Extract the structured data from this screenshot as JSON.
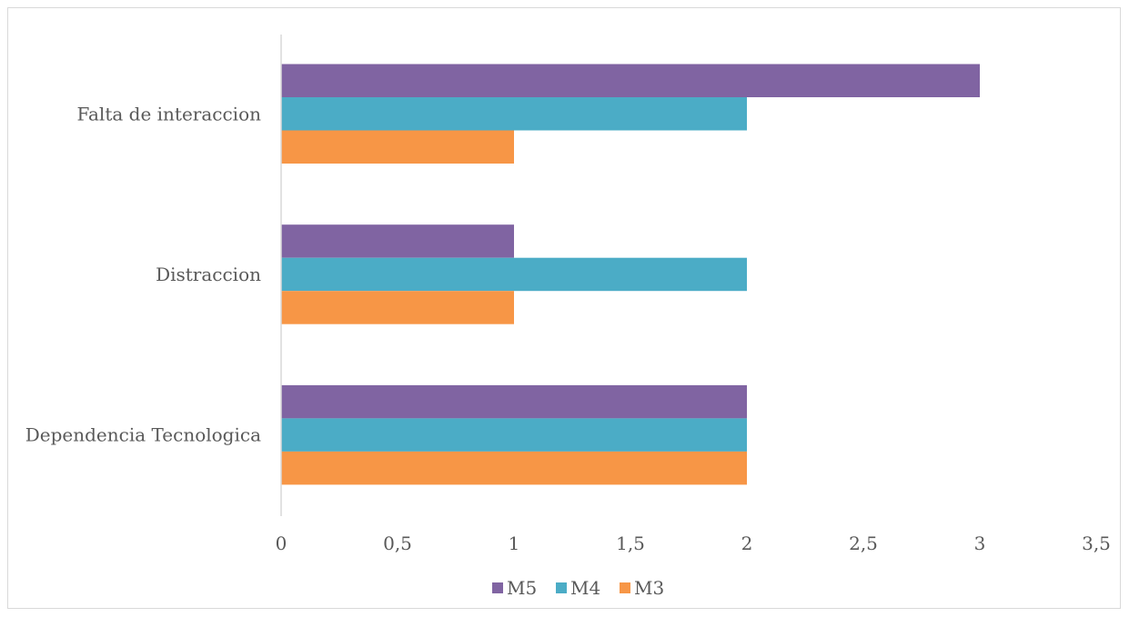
{
  "chart_data": {
    "type": "bar",
    "orientation": "horizontal",
    "categories": [
      "Dependencia Tecnologica",
      "Distraccion",
      "Falta de interaccion"
    ],
    "series": [
      {
        "name": "M3",
        "color": "#F79646",
        "values": [
          2,
          1,
          1
        ]
      },
      {
        "name": "M4",
        "color": "#4BACC6",
        "values": [
          2,
          2,
          2
        ]
      },
      {
        "name": "M5",
        "color": "#8064A2",
        "values": [
          2,
          1,
          3
        ]
      }
    ],
    "xlim": [
      0,
      3.5
    ],
    "xticks": [
      "0",
      "0,5",
      "1",
      "1,5",
      "2",
      "2,5",
      "3",
      "3,5"
    ],
    "xtick_values": [
      0,
      0.5,
      1,
      1.5,
      2,
      2.5,
      3,
      3.5
    ],
    "grid": false,
    "legend_position": "bottom",
    "legend_order": [
      "M5",
      "M4",
      "M3"
    ]
  }
}
